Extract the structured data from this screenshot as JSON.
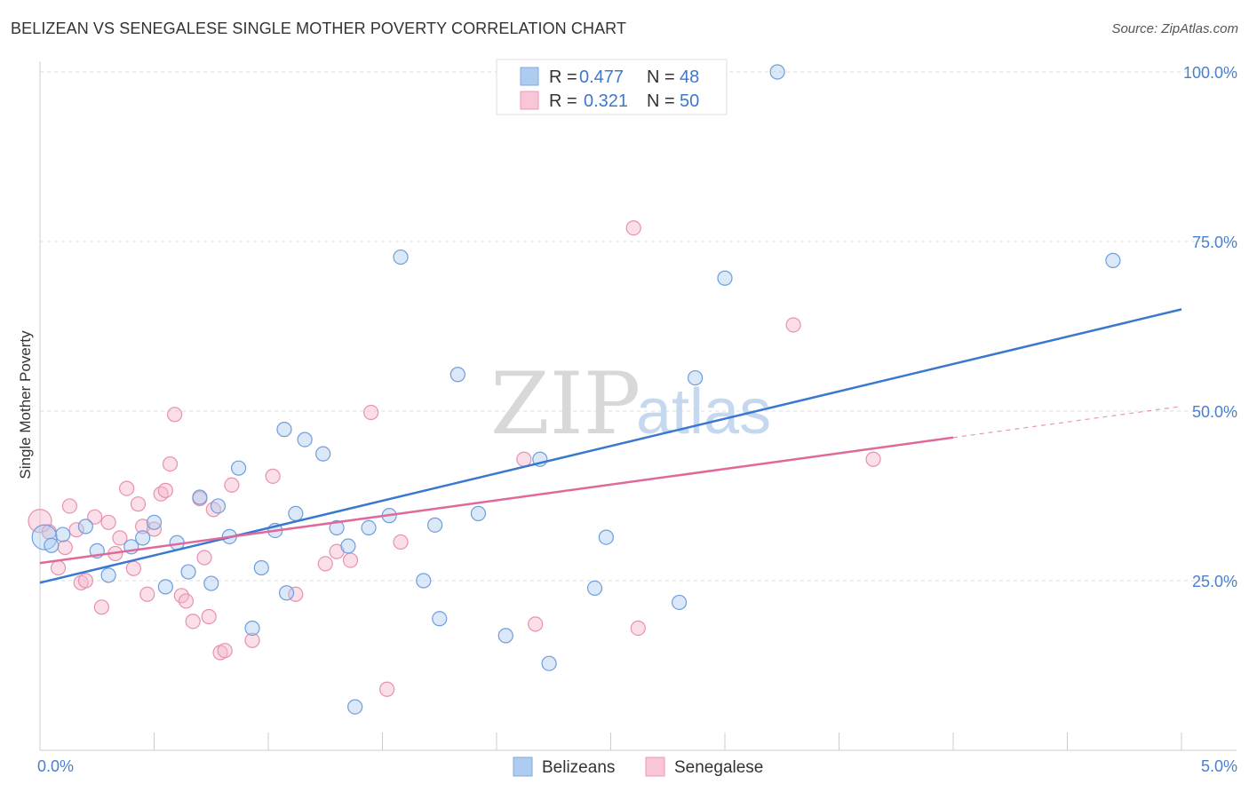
{
  "title": "BELIZEAN VS SENEGALESE SINGLE MOTHER POVERTY CORRELATION CHART",
  "source": "Source: ZipAtlas.com",
  "watermark": {
    "zip": "ZIP",
    "atlas": "atlas"
  },
  "colors": {
    "blue": "#3a78d0",
    "blue_fill": "#aecbf0",
    "pink": "#e0699a",
    "pink_fill": "#f5b8cd",
    "tick_label": "#4a7fcf",
    "grid": "#dddddd"
  },
  "legend": {
    "rows": [
      {
        "r_label": "R = ",
        "r_value": "0.477",
        "n_label": "N = ",
        "n_value": "48"
      },
      {
        "r_label": "R = ",
        "r_value": "0.321",
        "n_label": "N = ",
        "n_value": "50"
      }
    ]
  },
  "chart_data": {
    "type": "scatter",
    "title": "BELIZEAN VS SENEGALESE SINGLE MOTHER POVERTY CORRELATION CHART",
    "xlabel": "",
    "ylabel": "Single Mother Poverty",
    "xlim": [
      0,
      5
    ],
    "ylim": [
      0,
      105
    ],
    "x_tick_labels": [
      "0.0%",
      "5.0%"
    ],
    "y_ticks": [
      25,
      50,
      75,
      100
    ],
    "y_tick_labels": [
      "25.0%",
      "50.0%",
      "75.0%",
      "100.0%"
    ],
    "grid": "horizontal dashed",
    "legend_position": "top-center",
    "series": [
      {
        "name": "Belizeans",
        "color": "#3a78d0",
        "r": 0.477,
        "n": 48,
        "trend": {
          "x0": 0,
          "y0": 24.7,
          "x1": 5,
          "y1": 65.0
        },
        "points": [
          [
            0.02,
            31.4
          ],
          [
            0.05,
            30.2
          ],
          [
            0.1,
            31.8
          ],
          [
            0.2,
            33.0
          ],
          [
            0.25,
            29.4
          ],
          [
            0.3,
            25.8
          ],
          [
            0.4,
            30.0
          ],
          [
            0.45,
            31.3
          ],
          [
            0.5,
            33.6
          ],
          [
            0.55,
            24.1
          ],
          [
            0.6,
            30.6
          ],
          [
            0.65,
            26.3
          ],
          [
            0.7,
            37.3
          ],
          [
            0.75,
            24.6
          ],
          [
            0.78,
            36.0
          ],
          [
            0.83,
            31.5
          ],
          [
            0.87,
            41.6
          ],
          [
            0.93,
            18.0
          ],
          [
            0.97,
            26.9
          ],
          [
            1.03,
            32.4
          ],
          [
            1.07,
            47.3
          ],
          [
            1.08,
            23.2
          ],
          [
            1.12,
            34.9
          ],
          [
            1.16,
            45.8
          ],
          [
            1.24,
            43.7
          ],
          [
            1.3,
            32.8
          ],
          [
            1.35,
            30.1
          ],
          [
            1.38,
            6.4
          ],
          [
            1.44,
            32.8
          ],
          [
            1.53,
            34.6
          ],
          [
            1.58,
            72.7
          ],
          [
            1.68,
            25.0
          ],
          [
            1.73,
            33.2
          ],
          [
            1.75,
            19.4
          ],
          [
            1.83,
            55.4
          ],
          [
            1.92,
            34.9
          ],
          [
            2.04,
            16.9
          ],
          [
            2.19,
            42.9
          ],
          [
            2.23,
            12.8
          ],
          [
            2.43,
            23.9
          ],
          [
            2.48,
            31.4
          ],
          [
            2.8,
            21.8
          ],
          [
            2.87,
            54.9
          ],
          [
            3.0,
            69.6
          ],
          [
            3.23,
            100.0
          ],
          [
            4.7,
            72.2
          ]
        ]
      },
      {
        "name": "Senegalese",
        "color": "#e0699a",
        "r": 0.321,
        "n": 50,
        "trend": {
          "x0": 0,
          "y0": 27.6,
          "x1": 4.0,
          "y1": 46.1
        },
        "trend_dashed": {
          "x0": 4.0,
          "y0": 46.1,
          "x1": 5,
          "y1": 50.7
        },
        "points": [
          [
            0.0,
            33.8
          ],
          [
            0.04,
            32.2
          ],
          [
            0.08,
            26.9
          ],
          [
            0.11,
            29.9
          ],
          [
            0.13,
            36.0
          ],
          [
            0.16,
            32.5
          ],
          [
            0.18,
            24.7
          ],
          [
            0.2,
            25.0
          ],
          [
            0.24,
            34.4
          ],
          [
            0.27,
            21.1
          ],
          [
            0.3,
            33.6
          ],
          [
            0.33,
            29.0
          ],
          [
            0.35,
            31.3
          ],
          [
            0.38,
            38.6
          ],
          [
            0.41,
            26.8
          ],
          [
            0.43,
            36.3
          ],
          [
            0.45,
            33.0
          ],
          [
            0.47,
            23.0
          ],
          [
            0.5,
            32.6
          ],
          [
            0.53,
            37.8
          ],
          [
            0.55,
            38.3
          ],
          [
            0.57,
            42.2
          ],
          [
            0.59,
            49.5
          ],
          [
            0.62,
            22.8
          ],
          [
            0.64,
            22.0
          ],
          [
            0.67,
            19.0
          ],
          [
            0.7,
            37.1
          ],
          [
            0.72,
            28.4
          ],
          [
            0.74,
            19.7
          ],
          [
            0.76,
            35.5
          ],
          [
            0.79,
            14.4
          ],
          [
            0.81,
            14.7
          ],
          [
            0.84,
            39.1
          ],
          [
            0.93,
            16.2
          ],
          [
            1.02,
            40.4
          ],
          [
            1.12,
            23.0
          ],
          [
            1.25,
            27.5
          ],
          [
            1.3,
            29.3
          ],
          [
            1.36,
            28.0
          ],
          [
            1.45,
            49.8
          ],
          [
            1.52,
            9.0
          ],
          [
            1.58,
            30.7
          ],
          [
            2.12,
            42.9
          ],
          [
            2.17,
            18.6
          ],
          [
            2.6,
            77.0
          ],
          [
            2.62,
            18.0
          ],
          [
            3.3,
            62.7
          ],
          [
            3.65,
            42.9
          ]
        ]
      }
    ]
  }
}
